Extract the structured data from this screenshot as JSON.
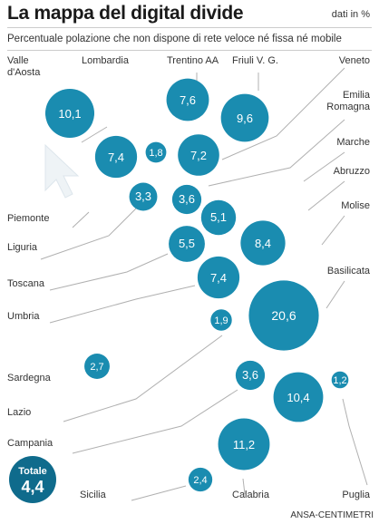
{
  "title": "La mappa del digital divide",
  "unit": "dati in %",
  "subtitle": "Percentuale polazione che non dispone di rete veloce né fissa né mobile",
  "credit": "ANSA-CENTIMETRI",
  "colors": {
    "bubble": "#1a8cb0",
    "total_bubble": "#0f6b8c",
    "value_text": "#ffffff",
    "label_text": "#333333",
    "leader": "#b0b0b0"
  },
  "chart_data": {
    "type": "bubble",
    "title": "La mappa del digital divide",
    "subtitle": "Percentuale polazione che non dispone di rete veloce né fissa né mobile",
    "unit": "dati in %",
    "regions": [
      {
        "name": "Valle d'Aosta",
        "value": 10.1,
        "value_label": "10,1"
      },
      {
        "name": "Lombardia",
        "value": 7.4,
        "value_label": "7,4"
      },
      {
        "name": "Trentino AA",
        "value": 7.6,
        "value_label": "7,6"
      },
      {
        "name": "Friuli V. G.",
        "value": 9.6,
        "value_label": "9,6"
      },
      {
        "name": "Veneto",
        "value": 7.2,
        "value_label": "7,2"
      },
      {
        "name": "Emilia Romagna",
        "value": 3.6,
        "value_label": "3,6"
      },
      {
        "name": "Piemonte",
        "value": 1.8,
        "value_label": "1,8"
      },
      {
        "name": "Liguria",
        "value": 3.3,
        "value_label": "3,3"
      },
      {
        "name": "Toscana",
        "value": 5.5,
        "value_label": "5,5"
      },
      {
        "name": "Marche",
        "value": 5.1,
        "value_label": "5,1"
      },
      {
        "name": "Abruzzo",
        "value": 8.4,
        "value_label": "8,4"
      },
      {
        "name": "Umbria",
        "value": 7.4,
        "value_label": "7,4"
      },
      {
        "name": "Molise",
        "value": 20.6,
        "value_label": "20,6"
      },
      {
        "name": "Lazio",
        "value": 1.9,
        "value_label": "1,9"
      },
      {
        "name": "Sardegna",
        "value": 2.7,
        "value_label": "2,7"
      },
      {
        "name": "Campania",
        "value": 3.6,
        "value_label": "3,6"
      },
      {
        "name": "Basilicata",
        "value": 10.4,
        "value_label": "10,4"
      },
      {
        "name": "Puglia",
        "value": 1.2,
        "value_label": "1,2"
      },
      {
        "name": "Calabria",
        "value": 11.2,
        "value_label": "11,2"
      },
      {
        "name": "Sicilia",
        "value": 2.4,
        "value_label": "2,4"
      }
    ],
    "total": {
      "label": "Totale",
      "value": 4.4,
      "value_label": "4,4"
    }
  }
}
